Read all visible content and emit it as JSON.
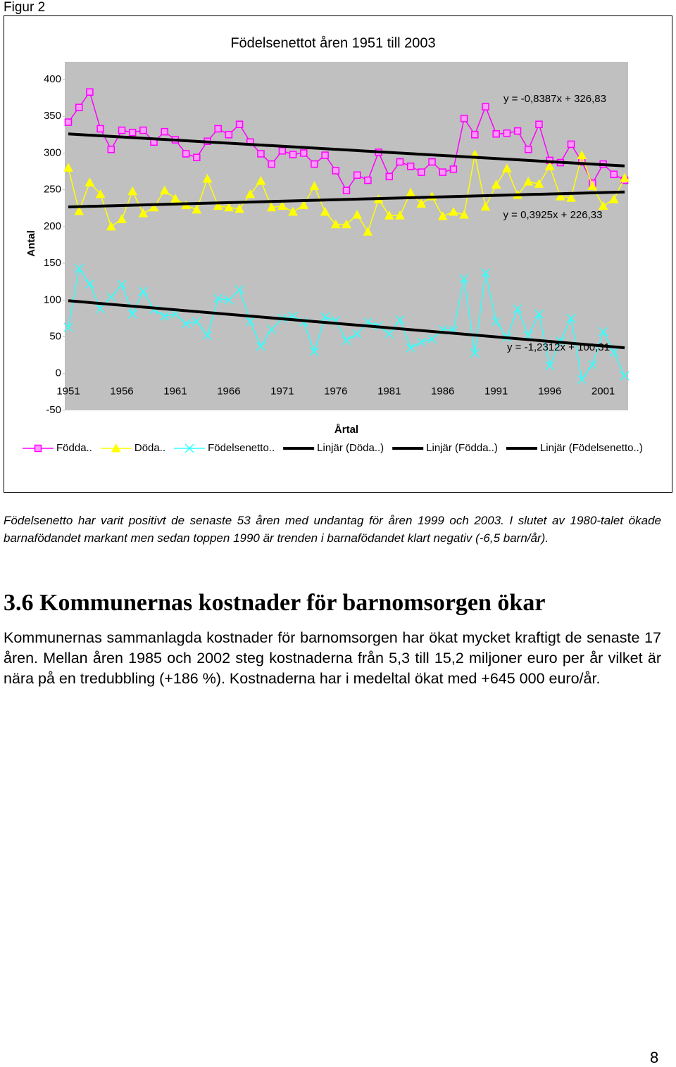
{
  "figure_label": "Figur 2",
  "chart_data": {
    "type": "line",
    "title": "Födelsenettot åren 1951 till 2003",
    "y_label": "Antal",
    "x_label": "Årtal",
    "x": [
      1951,
      1952,
      1953,
      1954,
      1955,
      1956,
      1957,
      1958,
      1959,
      1960,
      1961,
      1962,
      1963,
      1964,
      1965,
      1966,
      1967,
      1968,
      1969,
      1970,
      1971,
      1972,
      1973,
      1974,
      1975,
      1976,
      1977,
      1978,
      1979,
      1980,
      1981,
      1982,
      1983,
      1984,
      1985,
      1986,
      1987,
      1988,
      1989,
      1990,
      1991,
      1992,
      1993,
      1994,
      1995,
      1996,
      1997,
      1998,
      1999,
      2000,
      2001,
      2002,
      2003
    ],
    "xlim": [
      1950.67,
      2003.33
    ],
    "xticks": [
      1951,
      1956,
      1961,
      1966,
      1971,
      1976,
      1981,
      1986,
      1991,
      1996,
      2001
    ],
    "ylim": [
      -50,
      400
    ],
    "yticks": [
      -50,
      0,
      50,
      100,
      150,
      200,
      250,
      300,
      350,
      400
    ],
    "grid": false,
    "series": [
      {
        "name": "Födda..",
        "color": "#ff00ff",
        "marker": "square",
        "values": [
          342,
          362,
          383,
          333,
          305,
          331,
          328,
          331,
          315,
          329,
          318,
          299,
          294,
          316,
          333,
          325,
          339,
          315,
          299,
          285,
          303,
          298,
          300,
          285,
          297,
          276,
          249,
          270,
          263,
          301,
          268,
          288,
          282,
          274,
          288,
          274,
          278,
          347,
          325,
          363,
          326,
          327,
          330,
          305,
          339,
          290,
          287,
          312,
          288,
          259,
          285,
          271,
          263
        ]
      },
      {
        "name": "Döda..",
        "color": "#ffff00",
        "marker": "triangle",
        "values": [
          280,
          221,
          260,
          244,
          200,
          210,
          248,
          218,
          226,
          249,
          238,
          229,
          223,
          265,
          228,
          226,
          224,
          244,
          262,
          226,
          228,
          220,
          229,
          255,
          220,
          203,
          203,
          216,
          193,
          237,
          215,
          215,
          246,
          231,
          241,
          214,
          220,
          216,
          298,
          227,
          257,
          279,
          243,
          261,
          258,
          282,
          241,
          239,
          297,
          255,
          228,
          237,
          266
        ]
      },
      {
        "name": "Födelsenetto..",
        "color": "#33ffff",
        "marker": "x",
        "values": [
          63,
          143,
          122,
          88,
          104,
          121,
          81,
          112,
          87,
          78,
          81,
          68,
          71,
          52,
          102,
          100,
          114,
          71,
          37,
          60,
          75,
          78,
          70,
          30,
          77,
          72,
          45,
          54,
          70,
          65,
          54,
          73,
          35,
          43,
          47,
          60,
          59,
          129,
          28,
          137,
          71,
          49,
          88,
          52,
          81,
          11,
          44,
          75,
          -8,
          12,
          57,
          29,
          -3
        ]
      },
      {
        "name": "Linjär (Döda..)",
        "color": "#000000",
        "marker": "none",
        "x": [
          1951,
          2003
        ],
        "values": [
          226.7,
          247.1
        ]
      },
      {
        "name": "Linjär (Födda..)",
        "color": "#000000",
        "marker": "none",
        "x": [
          1951,
          2003
        ],
        "values": [
          326.0,
          282.4
        ]
      },
      {
        "name": "Linjär (Födelsenetto..)",
        "color": "#000000",
        "marker": "none",
        "x": [
          1951,
          2003
        ],
        "values": [
          99.1,
          35.1
        ]
      }
    ],
    "annotations": [
      "y = -0,8387x + 326,83",
      "y = 0,3925x + 226,33",
      "y = -1,2312x + 100,31"
    ]
  },
  "caption": "Födelsenetto har varit positivt de senaste 53 åren med undantag för åren 1999 och 2003. I slutet av 1980-talet ökade barnafödandet markant men sedan toppen 1990 är trenden i barnafödandet klart negativ (-6,5 barn/år).",
  "heading": "3.6 Kommunernas kostnader för barnomsorgen ökar",
  "body": "Kommunernas sammanlagda kostnader för barnomsorgen har ökat mycket kraftigt de senaste 17 åren. Mellan åren 1985 och 2002 steg kostnaderna från 5,3 till 15,2 miljoner euro per år vilket är nära på en tredubbling (+186 %). Kostnaderna har i medeltal ökat med +645 000 euro/år.",
  "page_number": "8"
}
